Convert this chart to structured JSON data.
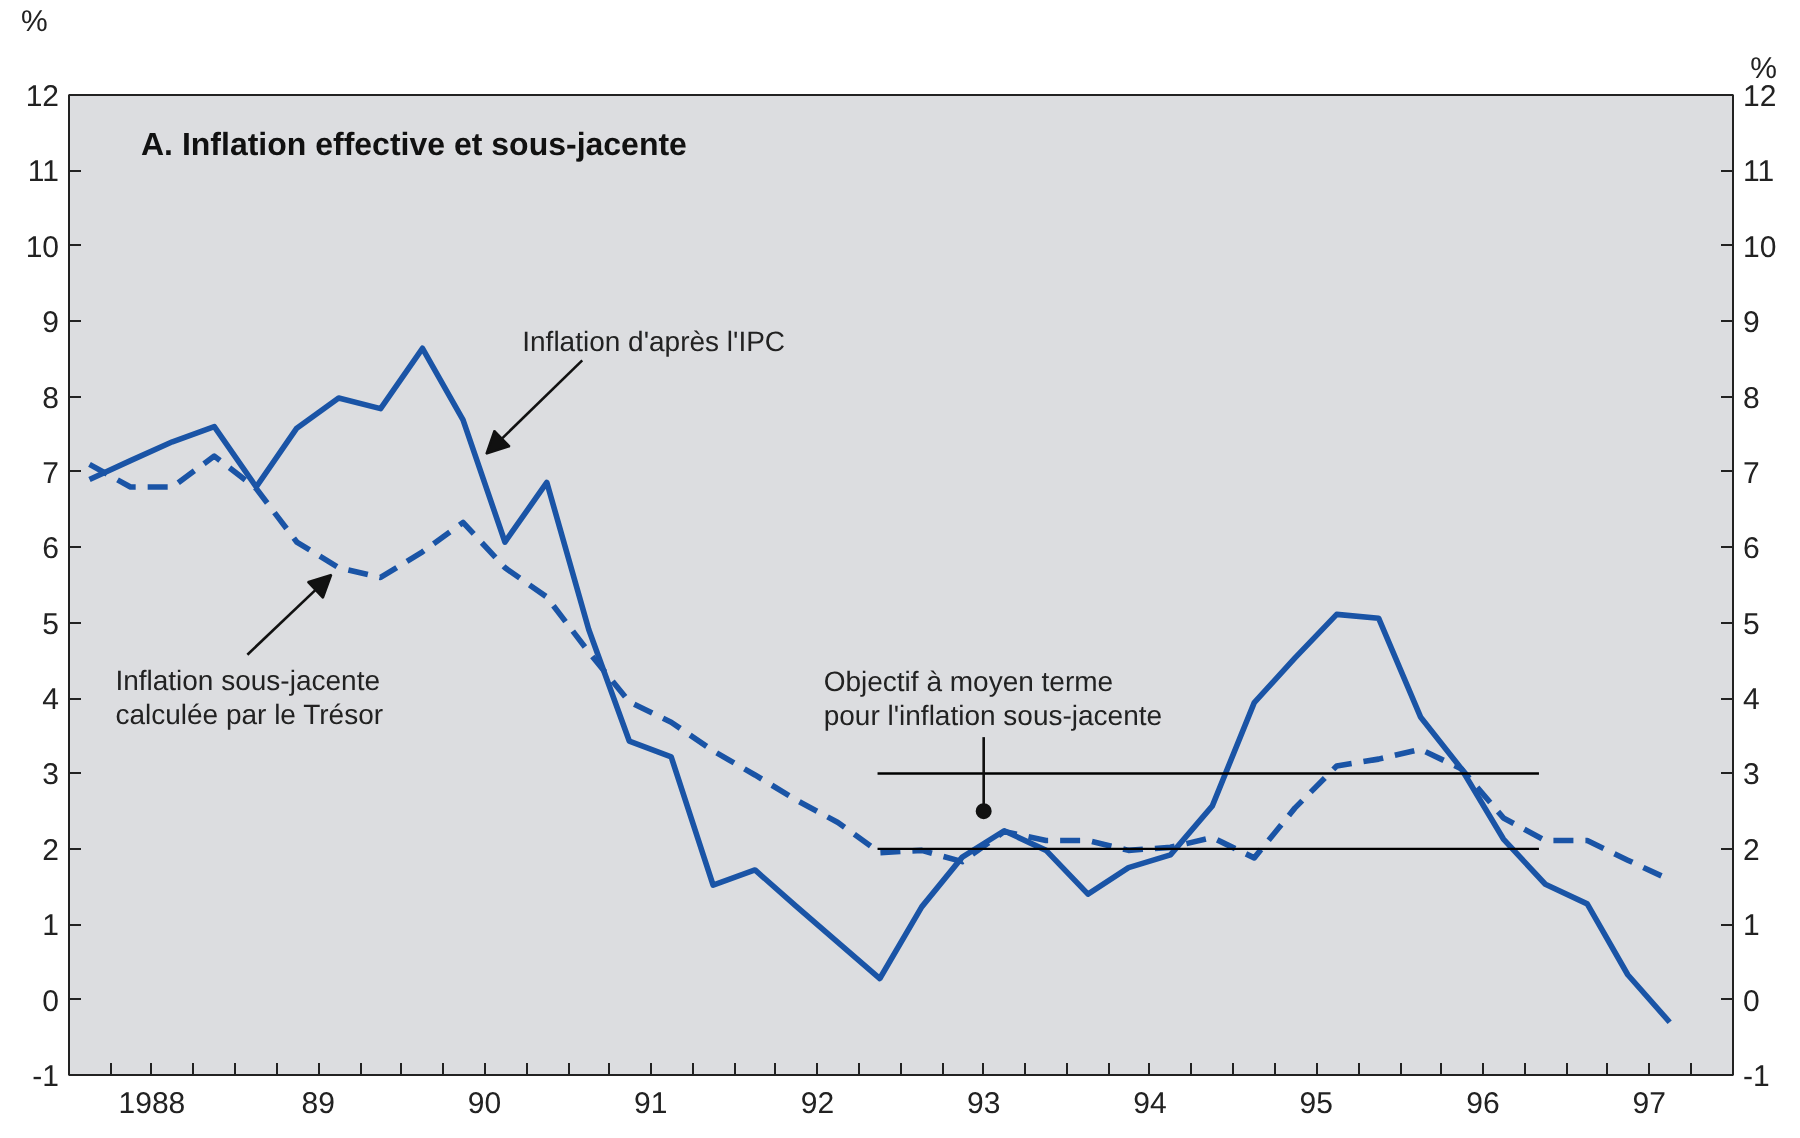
{
  "chart_data": {
    "type": "line",
    "title": "A.  Inflation effective et sous-jacente",
    "ylabel": "%",
    "y2label": "%",
    "x": [
      "1988-02-15",
      "1988-05-15",
      "1988-08-15",
      "1988-11-15",
      "1989-02-15",
      "1989-05-15",
      "1989-08-15",
      "1989-11-15",
      "1990-02-15",
      "1990-05-15",
      "1990-08-15",
      "1990-11-15",
      "1991-02-15",
      "1991-05-15",
      "1991-08-15",
      "1991-11-15",
      "1992-02-15",
      "1992-05-15",
      "1992-08-15",
      "1992-11-15",
      "1993-02-15",
      "1993-05-15",
      "1993-08-15",
      "1993-11-15",
      "1994-02-15",
      "1994-05-15",
      "1994-08-15",
      "1994-11-15",
      "1995-02-15",
      "1995-05-15",
      "1995-08-15",
      "1995-11-15",
      "1996-02-15",
      "1996-05-15",
      "1996-08-15",
      "1996-11-15",
      "1997-02-15",
      "1997-05-15",
      "1997-08-15"
    ],
    "series": [
      {
        "color": "#1a54a6",
        "line_style": "solid",
        "values": [
          6.9,
          7.15,
          7.4,
          7.6,
          6.8,
          7.58,
          7.98,
          7.84,
          8.64,
          7.69,
          6.07,
          6.86,
          4.91,
          3.43,
          3.22,
          1.52,
          1.72,
          1.24,
          0.76,
          0.28,
          1.23,
          1.89,
          2.24,
          1.98,
          1.4,
          1.75,
          1.92,
          2.57,
          3.94,
          4.53,
          5.11,
          5.06,
          3.75,
          3.06,
          2.13,
          1.53,
          1.27,
          0.33,
          -0.3
        ]
      },
      {
        "color": "#1a54a6",
        "line_style": "dashed",
        "values": [
          7.1,
          6.8,
          6.8,
          7.21,
          6.78,
          6.07,
          5.73,
          5.6,
          5.94,
          6.33,
          5.73,
          5.34,
          4.61,
          3.95,
          3.68,
          3.3,
          2.98,
          2.65,
          2.35,
          1.95,
          1.98,
          1.83,
          2.23,
          2.11,
          2.11,
          1.98,
          2.02,
          2.15,
          1.88,
          2.54,
          3.1,
          3.19,
          3.32,
          3.06,
          2.41,
          2.11,
          2.11,
          1.85,
          1.59
        ]
      },
      {
        "color": "#000000",
        "line_style": "solid",
        "x": [
          "1992-11-10",
          "1996-11-01"
        ],
        "values": [
          3,
          3
        ]
      },
      {
        "color": "#000000",
        "line_style": "solid",
        "x": [
          "1992-11-10",
          "1996-11-01"
        ],
        "values": [
          2,
          2
        ]
      }
    ],
    "annotations": [
      {
        "text": "Inflation d'après l'IPC",
        "x": "1990-07-05",
        "y": 7.24
      },
      {
        "text": "Inflation sous-jacente\ncalculée par le Trésor",
        "x": "1989-07-30",
        "y": 5.79
      },
      {
        "text": "Objectif à moyen terme\npour l'inflation sous-jacente",
        "x": "1993-07-01",
        "y": 2.5
      }
    ],
    "xlim": [
      "1988-01-01",
      "1998-01-01"
    ],
    "xticks": [
      {
        "value": "1988-04-01",
        "label": null
      },
      {
        "value": "1988-07-01",
        "label": "1988"
      },
      {
        "value": "1988-10-01",
        "label": null
      },
      {
        "value": "1989-01-01",
        "label": null
      },
      {
        "value": "1989-04-01",
        "label": null
      },
      {
        "value": "1989-07-01",
        "label": "89"
      },
      {
        "value": "1989-10-01",
        "label": null
      },
      {
        "value": "1990-01-01",
        "label": null
      },
      {
        "value": "1990-04-01",
        "label": null
      },
      {
        "value": "1990-07-01",
        "label": "90"
      },
      {
        "value": "1990-10-01",
        "label": null
      },
      {
        "value": "1991-01-01",
        "label": null
      },
      {
        "value": "1991-04-01",
        "label": null
      },
      {
        "value": "1991-07-01",
        "label": "91"
      },
      {
        "value": "1991-10-01",
        "label": null
      },
      {
        "value": "1992-01-01",
        "label": null
      },
      {
        "value": "1992-04-01",
        "label": null
      },
      {
        "value": "1992-07-01",
        "label": "92"
      },
      {
        "value": "1992-10-01",
        "label": null
      },
      {
        "value": "1993-01-01",
        "label": null
      },
      {
        "value": "1993-04-01",
        "label": null
      },
      {
        "value": "1993-07-01",
        "label": "93"
      },
      {
        "value": "1993-10-01",
        "label": null
      },
      {
        "value": "1994-01-01",
        "label": null
      },
      {
        "value": "1994-04-01",
        "label": null
      },
      {
        "value": "1994-07-01",
        "label": "94"
      },
      {
        "value": "1994-10-01",
        "label": null
      },
      {
        "value": "1995-01-01",
        "label": null
      },
      {
        "value": "1995-04-01",
        "label": null
      },
      {
        "value": "1995-07-01",
        "label": "95"
      },
      {
        "value": "1995-10-01",
        "label": null
      },
      {
        "value": "1996-01-01",
        "label": null
      },
      {
        "value": "1996-04-01",
        "label": null
      },
      {
        "value": "1996-07-01",
        "label": "96"
      },
      {
        "value": "1996-10-01",
        "label": null
      },
      {
        "value": "1997-01-01",
        "label": null
      },
      {
        "value": "1997-04-01",
        "label": null
      },
      {
        "value": "1997-07-01",
        "label": "97"
      },
      {
        "value": "1997-10-01",
        "label": null
      }
    ],
    "ylim": [
      -1,
      12
    ],
    "yticks": [
      -1,
      0,
      1,
      2,
      3,
      4,
      5,
      6,
      7,
      8,
      9,
      10,
      11,
      12
    ],
    "y2lim": [
      -1,
      12
    ],
    "y2ticks": [
      -1,
      0,
      1,
      2,
      3,
      4,
      5,
      6,
      7,
      8,
      9,
      10,
      11,
      12
    ],
    "grid": false
  }
}
